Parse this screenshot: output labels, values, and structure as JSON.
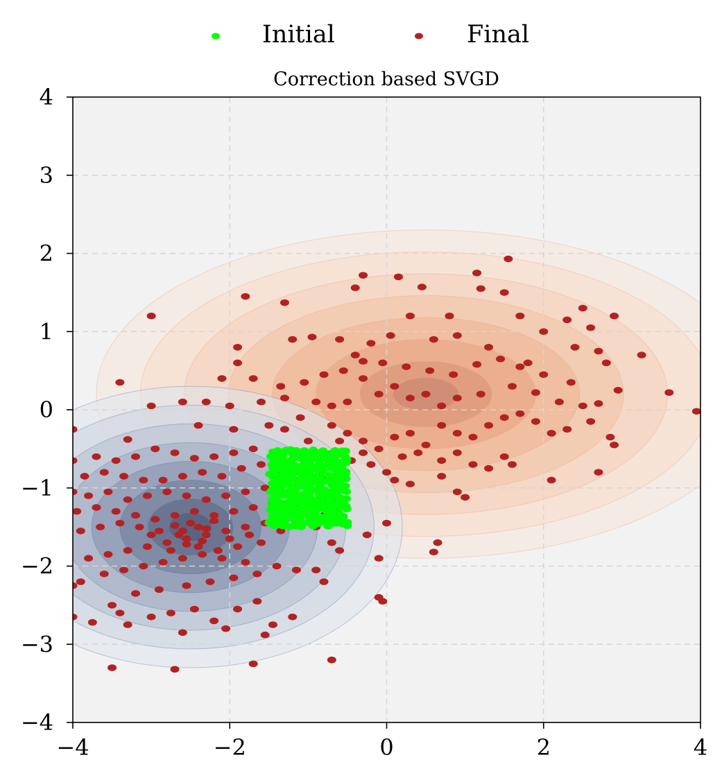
{
  "chart_data": {
    "type": "scatter",
    "title": "Correction based SVGD",
    "xlabel": "",
    "ylabel": "",
    "xlim": [
      -4,
      4
    ],
    "ylim": [
      -4,
      4
    ],
    "xticks": [
      -4,
      -2,
      0,
      2,
      4
    ],
    "yticks": [
      -4,
      -3,
      -2,
      -1,
      0,
      1,
      2,
      3,
      4
    ],
    "xtick_labels": [
      "−4",
      "−2",
      "0",
      "2",
      "4"
    ],
    "ytick_labels": [
      "−4",
      "−3",
      "−2",
      "−1",
      "0",
      "1",
      "2",
      "3",
      "4"
    ],
    "grid": true,
    "legend_position": "top-center",
    "background_color": "#f2f2f2",
    "background_density": {
      "components": [
        {
          "mean": [
            -2.5,
            -1.5
          ],
          "std": [
            0.9,
            0.6
          ],
          "colormap": "blues-dark"
        },
        {
          "mean": [
            0.5,
            0.2
          ],
          "std": [
            1.4,
            0.7
          ],
          "colormap": "oranges"
        }
      ]
    },
    "series": [
      {
        "name": "Initial",
        "color": "#00ff00",
        "distribution": "uniform",
        "x_range": [
          -1.5,
          -0.5
        ],
        "y_range": [
          -1.5,
          -0.5
        ],
        "count": 300
      },
      {
        "name": "Final",
        "color": "#b22222",
        "points": [
          [
            -3.0,
            1.2
          ],
          [
            -1.8,
            1.45
          ],
          [
            -1.3,
            1.37
          ],
          [
            -0.3,
            1.72
          ],
          [
            -0.4,
            1.56
          ],
          [
            0.45,
            1.57
          ],
          [
            1.15,
            1.75
          ],
          [
            1.55,
            1.93
          ],
          [
            1.2,
            1.55
          ],
          [
            1.5,
            1.5
          ],
          [
            0.15,
            1.7
          ],
          [
            0.6,
            0.9
          ],
          [
            0.9,
            0.95
          ],
          [
            1.3,
            0.8
          ],
          [
            1.8,
            0.6
          ],
          [
            2.4,
            0.8
          ],
          [
            2.7,
            0.75
          ],
          [
            2.9,
            1.2
          ],
          [
            3.25,
            0.7
          ],
          [
            3.6,
            0.22
          ],
          [
            3.95,
            -0.02
          ],
          [
            2.95,
            0.25
          ],
          [
            2.7,
            0.08
          ],
          [
            2.5,
            0.05
          ],
          [
            2.2,
            0.1
          ],
          [
            1.9,
            0.22
          ],
          [
            1.6,
            0.3
          ],
          [
            1.2,
            0.2
          ],
          [
            0.9,
            0.15
          ],
          [
            0.7,
            0.05
          ],
          [
            0.5,
            0.2
          ],
          [
            0.3,
            0.15
          ],
          [
            0.1,
            0.3
          ],
          [
            -0.1,
            0.2
          ],
          [
            -0.3,
            0.4
          ],
          [
            -0.5,
            0.1
          ],
          [
            -0.7,
            0.05
          ],
          [
            -0.9,
            0.1
          ],
          [
            -1.1,
            -0.1
          ],
          [
            -1.3,
            0.15
          ],
          [
            -1.5,
            -0.2
          ],
          [
            -1.7,
            0.4
          ],
          [
            -1.9,
            0.6
          ],
          [
            -2.1,
            0.4
          ],
          [
            -2.3,
            0.1
          ],
          [
            -2.6,
            0.1
          ],
          [
            -3.4,
            0.35
          ],
          [
            -3.0,
            0.05
          ],
          [
            -1.9,
            0.8
          ],
          [
            -1.2,
            0.9
          ],
          [
            -0.95,
            0.93
          ],
          [
            -0.6,
            0.9
          ],
          [
            -0.4,
            0.7
          ],
          [
            -0.2,
            0.85
          ],
          [
            0.05,
            0.95
          ],
          [
            0.3,
            1.2
          ],
          [
            0.8,
            1.2
          ],
          [
            1.7,
            1.2
          ],
          [
            2.0,
            1.0
          ],
          [
            2.3,
            1.15
          ],
          [
            2.5,
            1.3
          ],
          [
            2.6,
            1.05
          ],
          [
            2.8,
            0.6
          ],
          [
            2.35,
            0.35
          ],
          [
            2.0,
            0.45
          ],
          [
            1.7,
            0.55
          ],
          [
            1.45,
            0.65
          ],
          [
            1.15,
            0.58
          ],
          [
            0.85,
            0.45
          ],
          [
            0.55,
            0.5
          ],
          [
            0.25,
            0.55
          ],
          [
            -0.05,
            0.6
          ],
          [
            -0.3,
            0.62
          ],
          [
            -0.55,
            0.5
          ],
          [
            -0.8,
            0.45
          ],
          [
            -1.05,
            0.35
          ],
          [
            -1.35,
            0.3
          ],
          [
            -1.6,
            0.1
          ],
          [
            -2.0,
            0.05
          ],
          [
            -0.7,
            -0.2
          ],
          [
            -0.5,
            -0.3
          ],
          [
            -0.3,
            -0.4
          ],
          [
            -0.1,
            -0.5
          ],
          [
            0.1,
            -0.35
          ],
          [
            0.3,
            -0.3
          ],
          [
            0.5,
            -0.45
          ],
          [
            0.7,
            -0.2
          ],
          [
            0.9,
            -0.3
          ],
          [
            1.1,
            -0.35
          ],
          [
            1.3,
            -0.2
          ],
          [
            1.5,
            -0.1
          ],
          [
            1.7,
            -0.05
          ],
          [
            1.9,
            -0.15
          ],
          [
            2.1,
            -0.3
          ],
          [
            2.3,
            -0.25
          ],
          [
            2.6,
            -0.15
          ],
          [
            2.85,
            -0.35
          ],
          [
            2.9,
            -0.45
          ],
          [
            2.7,
            -0.8
          ],
          [
            2.1,
            -0.9
          ],
          [
            1.5,
            -0.6
          ],
          [
            1.1,
            -0.7
          ],
          [
            0.9,
            -0.55
          ],
          [
            0.7,
            -0.65
          ],
          [
            0.4,
            -0.55
          ],
          [
            0.2,
            -0.6
          ],
          [
            0.0,
            -0.8
          ],
          [
            -0.2,
            -0.7
          ],
          [
            0.1,
            -0.9
          ],
          [
            0.3,
            -0.95
          ],
          [
            0.7,
            -0.85
          ],
          [
            1.3,
            -0.75
          ],
          [
            1.6,
            -0.7
          ],
          [
            0.9,
            -1.05
          ],
          [
            1.0,
            -1.12
          ],
          [
            0.0,
            -1.45
          ],
          [
            0.65,
            -1.7
          ],
          [
            0.6,
            -1.82
          ],
          [
            -0.25,
            -1.6
          ],
          [
            -0.1,
            -1.9
          ],
          [
            -0.1,
            -2.4
          ],
          [
            -0.05,
            -2.45
          ],
          [
            -0.6,
            -1.8
          ],
          [
            -0.7,
            -1.7
          ],
          [
            -0.8,
            -2.2
          ],
          [
            -0.9,
            -2.05
          ],
          [
            -1.15,
            -2.05
          ],
          [
            -1.2,
            -2.65
          ],
          [
            -1.45,
            -2.75
          ],
          [
            -1.55,
            -2.88
          ],
          [
            -1.7,
            -3.25
          ],
          [
            -0.7,
            -3.2
          ],
          [
            -2.7,
            -3.32
          ],
          [
            -3.5,
            -3.3
          ],
          [
            -2.6,
            -2.85
          ],
          [
            -2.2,
            -2.7
          ],
          [
            -2.05,
            -2.8
          ],
          [
            -1.9,
            -2.55
          ],
          [
            -1.65,
            -2.45
          ],
          [
            -2.45,
            -2.55
          ],
          [
            -2.75,
            -2.6
          ],
          [
            -3.0,
            -2.65
          ],
          [
            -3.3,
            -2.75
          ],
          [
            -3.4,
            -2.6
          ],
          [
            -3.75,
            -2.72
          ],
          [
            -4.0,
            -2.65
          ],
          [
            -3.5,
            -2.5
          ],
          [
            -3.2,
            -2.35
          ],
          [
            -2.9,
            -2.3
          ],
          [
            -2.55,
            -2.25
          ],
          [
            -2.25,
            -2.2
          ],
          [
            -1.95,
            -2.15
          ],
          [
            -1.65,
            -2.1
          ],
          [
            -1.4,
            -2.0
          ],
          [
            -1.8,
            -1.95
          ],
          [
            -2.1,
            -1.9
          ],
          [
            -2.35,
            -1.85
          ],
          [
            -2.6,
            -1.9
          ],
          [
            -2.85,
            -1.95
          ],
          [
            -3.1,
            -2.0
          ],
          [
            -3.35,
            -2.05
          ],
          [
            -3.6,
            -2.1
          ],
          [
            -3.9,
            -2.2
          ],
          [
            -4.0,
            -2.25
          ],
          [
            -3.8,
            -1.9
          ],
          [
            -3.55,
            -1.85
          ],
          [
            -3.3,
            -1.8
          ],
          [
            -3.05,
            -1.75
          ],
          [
            -2.8,
            -1.7
          ],
          [
            -2.55,
            -1.65
          ],
          [
            -2.3,
            -1.6
          ],
          [
            -2.05,
            -1.55
          ],
          [
            -1.8,
            -1.5
          ],
          [
            -1.55,
            -1.45
          ],
          [
            -1.35,
            -1.55
          ],
          [
            -1.6,
            -1.7
          ],
          [
            -1.9,
            -1.75
          ],
          [
            -2.15,
            -1.8
          ],
          [
            -2.4,
            -1.75
          ],
          [
            -2.65,
            -1.6
          ],
          [
            -2.9,
            -1.55
          ],
          [
            -3.15,
            -1.5
          ],
          [
            -3.4,
            -1.45
          ],
          [
            -3.65,
            -1.5
          ],
          [
            -3.9,
            -1.55
          ],
          [
            -3.95,
            -1.3
          ],
          [
            -3.7,
            -1.25
          ],
          [
            -3.45,
            -1.3
          ],
          [
            -3.2,
            -1.35
          ],
          [
            -2.95,
            -1.4
          ],
          [
            -2.7,
            -1.35
          ],
          [
            -2.45,
            -1.3
          ],
          [
            -2.2,
            -1.35
          ],
          [
            -1.95,
            -1.3
          ],
          [
            -1.7,
            -1.25
          ],
          [
            -1.45,
            -1.2
          ],
          [
            -1.55,
            -1.0
          ],
          [
            -1.8,
            -1.05
          ],
          [
            -2.05,
            -1.1
          ],
          [
            -2.3,
            -1.15
          ],
          [
            -2.55,
            -1.1
          ],
          [
            -2.8,
            -1.05
          ],
          [
            -3.05,
            -1.1
          ],
          [
            -3.3,
            -1.15
          ],
          [
            -3.55,
            -1.05
          ],
          [
            -3.8,
            -1.1
          ],
          [
            -4.0,
            -1.05
          ],
          [
            -3.85,
            -0.85
          ],
          [
            -3.6,
            -0.8
          ],
          [
            -3.35,
            -0.85
          ],
          [
            -3.1,
            -0.9
          ],
          [
            -2.85,
            -0.9
          ],
          [
            -2.6,
            -0.85
          ],
          [
            -2.35,
            -0.8
          ],
          [
            -2.1,
            -0.85
          ],
          [
            -1.85,
            -0.75
          ],
          [
            -1.6,
            -0.7
          ],
          [
            -1.7,
            -0.5
          ],
          [
            -1.95,
            -0.55
          ],
          [
            -2.2,
            -0.6
          ],
          [
            -2.45,
            -0.62
          ],
          [
            -2.7,
            -0.55
          ],
          [
            -2.95,
            -0.5
          ],
          [
            -3.2,
            -0.6
          ],
          [
            -3.45,
            -0.65
          ],
          [
            -3.7,
            -0.6
          ],
          [
            -4.0,
            -0.65
          ],
          [
            -4.0,
            -0.25
          ],
          [
            -3.3,
            -0.38
          ],
          [
            -2.4,
            -0.2
          ],
          [
            -1.95,
            -0.25
          ],
          [
            -1.3,
            -0.25
          ],
          [
            -1.0,
            -0.4
          ],
          [
            -0.85,
            -0.55
          ],
          [
            -0.6,
            -0.4
          ],
          [
            -0.45,
            -0.65
          ],
          [
            -0.3,
            -0.55
          ],
          [
            -2.4,
            -1.5
          ],
          [
            -2.5,
            -1.45
          ],
          [
            -2.3,
            -1.52
          ],
          [
            -2.6,
            -1.55
          ],
          [
            -2.7,
            -1.48
          ],
          [
            -2.2,
            -1.42
          ],
          [
            -2.35,
            -1.68
          ],
          [
            -2.55,
            -1.72
          ],
          [
            -2.75,
            -1.8
          ],
          [
            -2.0,
            -1.65
          ],
          [
            -1.75,
            -1.6
          ],
          [
            -3.0,
            -1.6
          ],
          [
            -1.3,
            -0.7
          ],
          [
            -1.0,
            -0.7
          ],
          [
            -0.75,
            -0.85
          ],
          [
            -1.2,
            -1.0
          ],
          [
            -1.0,
            -1.2
          ],
          [
            -0.8,
            -1.35
          ],
          [
            -1.3,
            -1.4
          ],
          [
            -0.9,
            -1.5
          ],
          [
            -1.4,
            -0.8
          ],
          [
            -0.7,
            -1.1
          ],
          [
            -1.1,
            -1.3
          ]
        ]
      }
    ]
  }
}
